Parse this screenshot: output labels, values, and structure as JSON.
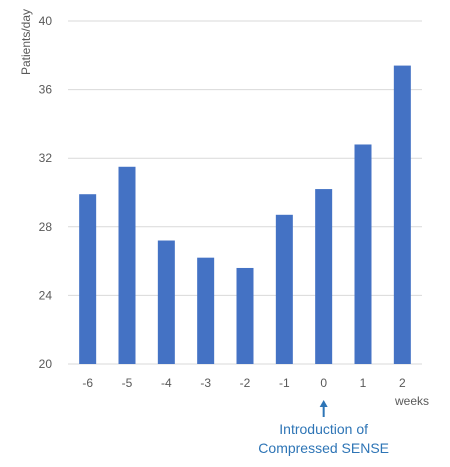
{
  "chart_data": {
    "type": "bar",
    "title": "",
    "ylabel": "Patients/day",
    "xlabel": "weeks",
    "categories": [
      "-6",
      "-5",
      "-4",
      "-3",
      "-2",
      "-1",
      "0",
      "1",
      "2"
    ],
    "series": [
      {
        "values": [
          29.9,
          31.5,
          27.2,
          26.2,
          25.6,
          28.7,
          30.2,
          32.8,
          37.4
        ]
      }
    ],
    "ylim": [
      20,
      40
    ],
    "yticks": [
      20,
      24,
      28,
      32,
      36,
      40
    ],
    "grid": "horizontal",
    "bar_color": "#4472C4",
    "annotation": {
      "category": "0",
      "lines": [
        "Introduction of",
        "Compressed SENSE"
      ],
      "color": "#2E75B6"
    }
  }
}
